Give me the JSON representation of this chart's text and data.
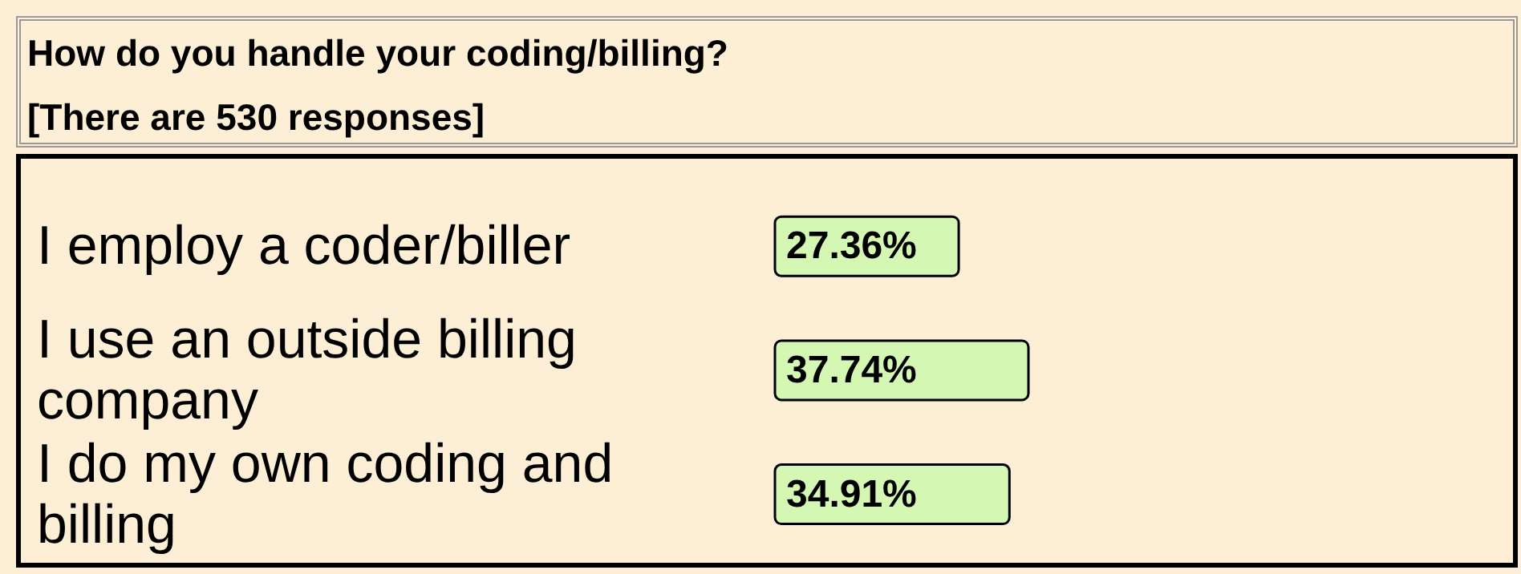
{
  "chart_data": {
    "type": "bar",
    "orientation": "horizontal",
    "title": "How do you handle your coding/billing?",
    "subtitle": "[There are 530 responses]",
    "categories": [
      "I employ a coder/biller",
      "I use an outside billing company",
      "I do my own coding and billing"
    ],
    "values": [
      27.36,
      37.74,
      34.91
    ],
    "value_labels": [
      "27.36%",
      "37.74%",
      "34.91%"
    ],
    "color": "#d4f7b4",
    "tick_labels": "y"
  }
}
